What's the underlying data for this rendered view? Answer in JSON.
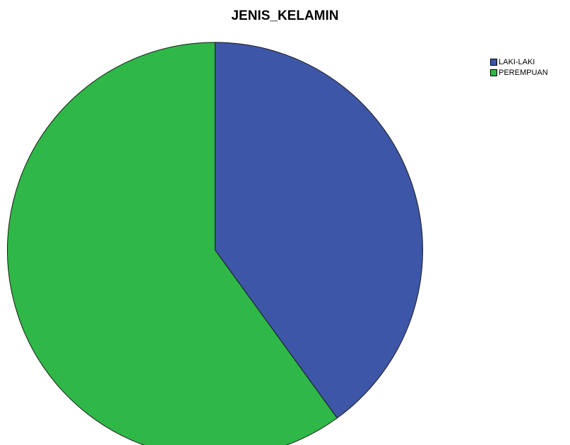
{
  "chart_data": {
    "type": "pie",
    "title": "JENIS_KELAMIN",
    "categories": [
      "LAKI-LAKI",
      "PEREMPUAN"
    ],
    "values": [
      40,
      60
    ],
    "colors": [
      "#3d56a8",
      "#2fb748"
    ],
    "legend_position": "top-right"
  }
}
